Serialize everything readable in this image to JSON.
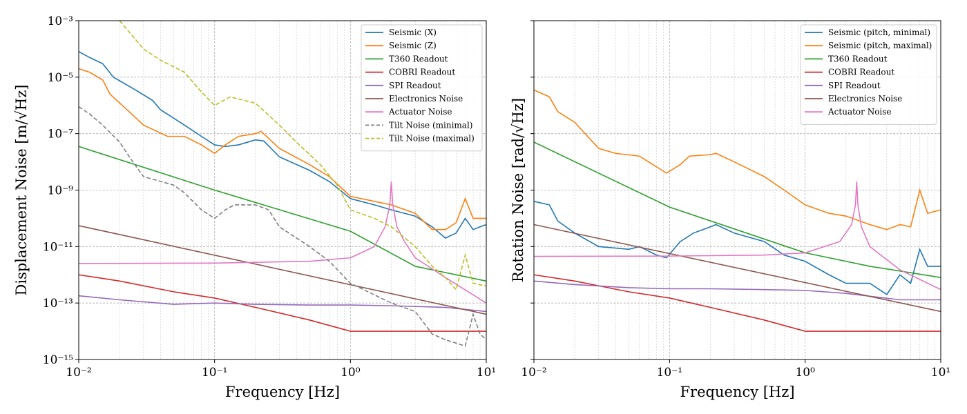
{
  "chart_data": [
    {
      "type": "line",
      "xscale": "log",
      "yscale": "log",
      "xlim": [
        0.01,
        10
      ],
      "ylim": [
        1e-15,
        0.001
      ],
      "xlabel": "Frequency [Hz]",
      "ylabel": "Displacement Noise [m/√Hz]",
      "grid": true,
      "legend_position": "top-right",
      "x_ticks": [
        "10⁻²",
        "10⁻¹",
        "10⁰",
        "10¹"
      ],
      "y_ticks": [
        "10⁻¹⁵",
        "10⁻¹³",
        "10⁻¹¹",
        "10⁻⁹",
        "10⁻⁷",
        "10⁻⁵",
        "10⁻³"
      ],
      "series": [
        {
          "name": "Seismic (X)",
          "color": "#1f77b4",
          "dash": "solid",
          "points": [
            [
              0.01,
              8e-05
            ],
            [
              0.012,
              5e-05
            ],
            [
              0.015,
              3e-05
            ],
            [
              0.018,
              1e-05
            ],
            [
              0.025,
              4e-06
            ],
            [
              0.035,
              1.5e-06
            ],
            [
              0.04,
              7e-07
            ],
            [
              0.06,
              2e-07
            ],
            [
              0.08,
              8e-08
            ],
            [
              0.1,
              4e-08
            ],
            [
              0.12,
              3.5e-08
            ],
            [
              0.15,
              4e-08
            ],
            [
              0.2,
              6e-08
            ],
            [
              0.23,
              5.5e-08
            ],
            [
              0.3,
              1.5e-08
            ],
            [
              0.5,
              5e-09
            ],
            [
              0.7,
              2e-09
            ],
            [
              1,
              5e-10
            ],
            [
              1.5,
              3e-10
            ],
            [
              2,
              2e-10
            ],
            [
              3,
              1.2e-10
            ],
            [
              4,
              5e-11
            ],
            [
              5,
              2e-11
            ],
            [
              6,
              3e-11
            ],
            [
              7,
              1e-10
            ],
            [
              8,
              4e-11
            ],
            [
              9,
              5e-11
            ],
            [
              10,
              6e-11
            ]
          ]
        },
        {
          "name": "Seismic (Z)",
          "color": "#ff7f0e",
          "dash": "solid",
          "points": [
            [
              0.01,
              2e-05
            ],
            [
              0.012,
              1.5e-05
            ],
            [
              0.015,
              8e-06
            ],
            [
              0.017,
              2.5e-06
            ],
            [
              0.022,
              8e-07
            ],
            [
              0.03,
              2e-07
            ],
            [
              0.045,
              8e-08
            ],
            [
              0.06,
              8e-08
            ],
            [
              0.08,
              4e-08
            ],
            [
              0.1,
              2e-08
            ],
            [
              0.12,
              4e-08
            ],
            [
              0.15,
              8e-08
            ],
            [
              0.2,
              1e-07
            ],
            [
              0.22,
              1.2e-07
            ],
            [
              0.3,
              3e-08
            ],
            [
              0.5,
              8e-09
            ],
            [
              0.7,
              3e-09
            ],
            [
              1,
              6e-10
            ],
            [
              1.5,
              4e-10
            ],
            [
              2,
              3e-10
            ],
            [
              3,
              1.5e-10
            ],
            [
              4,
              4e-11
            ],
            [
              5,
              4e-11
            ],
            [
              6,
              7e-11
            ],
            [
              7,
              5e-10
            ],
            [
              8,
              1e-10
            ],
            [
              10,
              1e-10
            ]
          ]
        },
        {
          "name": "T360 Readout",
          "color": "#2ca02c",
          "dash": "solid",
          "points": [
            [
              0.01,
              3.5e-08
            ],
            [
              0.1,
              1e-09
            ],
            [
              1,
              3.5e-11
            ],
            [
              3,
              2e-12
            ],
            [
              10,
              6e-13
            ]
          ]
        },
        {
          "name": "COBRI Readout",
          "color": "#d62728",
          "dash": "solid",
          "points": [
            [
              0.01,
              1e-12
            ],
            [
              0.02,
              6e-13
            ],
            [
              0.05,
              2.5e-13
            ],
            [
              0.1,
              1.5e-13
            ],
            [
              0.2,
              7e-14
            ],
            [
              0.5,
              2.5e-14
            ],
            [
              1,
              1e-14
            ],
            [
              10,
              1e-14
            ]
          ]
        },
        {
          "name": "SPI Readout",
          "color": "#9467bd",
          "dash": "solid",
          "points": [
            [
              0.01,
              1.8e-13
            ],
            [
              0.02,
              1.3e-13
            ],
            [
              0.05,
              9e-14
            ],
            [
              0.1,
              1e-13
            ],
            [
              0.2,
              9e-14
            ],
            [
              0.5,
              8.5e-14
            ],
            [
              1,
              8.5e-14
            ],
            [
              2,
              8e-14
            ],
            [
              5,
              7e-14
            ],
            [
              10,
              5e-14
            ]
          ]
        },
        {
          "name": "Electronics Noise",
          "color": "#8c564b",
          "dash": "solid",
          "points": [
            [
              0.01,
              5.5e-11
            ],
            [
              10,
              4e-14
            ]
          ]
        },
        {
          "name": "Actuator Noise",
          "color": "#e377c2",
          "dash": "solid",
          "points": [
            [
              0.01,
              2.5e-12
            ],
            [
              0.1,
              2.6e-12
            ],
            [
              0.5,
              3e-12
            ],
            [
              1,
              4e-12
            ],
            [
              1.5,
              1e-11
            ],
            [
              1.8,
              5e-11
            ],
            [
              1.95,
              3e-10
            ],
            [
              2,
              2e-09
            ],
            [
              2.05,
              3e-10
            ],
            [
              2.2,
              5e-11
            ],
            [
              2.5,
              1.5e-11
            ],
            [
              3,
              4e-12
            ],
            [
              5,
              8e-13
            ],
            [
              10,
              1e-13
            ]
          ]
        },
        {
          "name": "Tilt Noise (minimal)",
          "color": "#7f7f7f",
          "dash": "dashed",
          "points": [
            [
              0.01,
              9e-07
            ],
            [
              0.012,
              5e-07
            ],
            [
              0.015,
              2e-07
            ],
            [
              0.02,
              5e-08
            ],
            [
              0.025,
              1e-08
            ],
            [
              0.03,
              3e-09
            ],
            [
              0.05,
              1.5e-09
            ],
            [
              0.06,
              8e-10
            ],
            [
              0.08,
              2e-10
            ],
            [
              0.1,
              1e-10
            ],
            [
              0.12,
              2e-10
            ],
            [
              0.14,
              3e-10
            ],
            [
              0.2,
              3e-10
            ],
            [
              0.25,
              2e-10
            ],
            [
              0.3,
              5e-11
            ],
            [
              0.5,
              1e-11
            ],
            [
              0.7,
              3e-12
            ],
            [
              1,
              5e-13
            ],
            [
              2,
              1e-13
            ],
            [
              3,
              5e-14
            ],
            [
              4,
              8e-15
            ],
            [
              5,
              5e-15
            ],
            [
              7,
              3e-15
            ],
            [
              8,
              4e-14
            ],
            [
              9,
              8e-15
            ],
            [
              10,
              5e-15
            ]
          ]
        },
        {
          "name": "Tilt Noise (maximal)",
          "color": "#bcbd22",
          "dash": "dashed",
          "points": [
            [
              0.02,
              0.001
            ],
            [
              0.03,
              0.0001
            ],
            [
              0.04,
              4e-05
            ],
            [
              0.06,
              1.5e-05
            ],
            [
              0.08,
              3e-06
            ],
            [
              0.1,
              1e-06
            ],
            [
              0.13,
              2e-06
            ],
            [
              0.2,
              1.2e-06
            ],
            [
              0.3,
              2e-07
            ],
            [
              0.4,
              5e-08
            ],
            [
              0.6,
              8e-09
            ],
            [
              0.8,
              1.5e-09
            ],
            [
              1,
              2e-10
            ],
            [
              1.5,
              1e-10
            ],
            [
              2,
              5e-11
            ],
            [
              3,
              1e-11
            ],
            [
              4,
              2e-12
            ],
            [
              5,
              8e-13
            ],
            [
              6,
              3e-13
            ],
            [
              7,
              5e-12
            ],
            [
              8,
              5e-13
            ],
            [
              10,
              4e-13
            ]
          ]
        }
      ]
    },
    {
      "type": "line",
      "xscale": "log",
      "yscale": "log",
      "xlim": [
        0.01,
        10
      ],
      "ylim": [
        1e-15,
        0.001
      ],
      "xlabel": "Frequency [Hz]",
      "ylabel": "Rotation Noise [rad/√Hz]",
      "grid": true,
      "legend_position": "top-right",
      "x_ticks": [
        "10⁻²",
        "10⁻¹",
        "10⁰",
        "10¹"
      ],
      "series": [
        {
          "name": "Seismic (pitch, minimal)",
          "color": "#1f77b4",
          "dash": "solid",
          "points": [
            [
              0.01,
              4e-10
            ],
            [
              0.013,
              3e-10
            ],
            [
              0.015,
              8e-11
            ],
            [
              0.02,
              3e-11
            ],
            [
              0.03,
              1e-11
            ],
            [
              0.05,
              8e-12
            ],
            [
              0.06,
              1e-11
            ],
            [
              0.08,
              5e-12
            ],
            [
              0.095,
              4e-12
            ],
            [
              0.12,
              1.5e-11
            ],
            [
              0.15,
              3e-11
            ],
            [
              0.2,
              5e-11
            ],
            [
              0.22,
              6e-11
            ],
            [
              0.3,
              3e-11
            ],
            [
              0.5,
              1.5e-11
            ],
            [
              0.7,
              5e-12
            ],
            [
              1,
              3e-12
            ],
            [
              1.5,
              1e-12
            ],
            [
              2,
              5e-13
            ],
            [
              3,
              5e-13
            ],
            [
              4,
              2e-13
            ],
            [
              5,
              1e-12
            ],
            [
              6,
              5e-13
            ],
            [
              7,
              8e-12
            ],
            [
              8,
              2e-12
            ],
            [
              10,
              2e-12
            ]
          ]
        },
        {
          "name": "Seismic (pitch, maximal)",
          "color": "#ff7f0e",
          "dash": "solid",
          "points": [
            [
              0.01,
              3.5e-06
            ],
            [
              0.013,
              2e-06
            ],
            [
              0.015,
              6e-07
            ],
            [
              0.02,
              2.5e-07
            ],
            [
              0.03,
              3e-08
            ],
            [
              0.04,
              2e-08
            ],
            [
              0.06,
              1.6e-08
            ],
            [
              0.07,
              1e-08
            ],
            [
              0.095,
              4e-09
            ],
            [
              0.12,
              8e-09
            ],
            [
              0.14,
              1.6e-08
            ],
            [
              0.2,
              1.8e-08
            ],
            [
              0.22,
              2e-08
            ],
            [
              0.3,
              1e-08
            ],
            [
              0.5,
              3e-09
            ],
            [
              0.7,
              1e-09
            ],
            [
              1,
              3e-10
            ],
            [
              1.5,
              1.5e-10
            ],
            [
              2,
              1.2e-10
            ],
            [
              3,
              6e-11
            ],
            [
              4,
              4e-11
            ],
            [
              5,
              6e-11
            ],
            [
              6,
              5e-11
            ],
            [
              7,
              1e-09
            ],
            [
              8,
              1.5e-10
            ],
            [
              10,
              2e-10
            ]
          ]
        },
        {
          "name": "T360 Readout",
          "color": "#2ca02c",
          "dash": "solid",
          "points": [
            [
              0.01,
              5e-08
            ],
            [
              0.1,
              2.5e-10
            ],
            [
              1,
              6e-12
            ],
            [
              3,
              2e-12
            ],
            [
              10,
              8e-13
            ]
          ]
        },
        {
          "name": "COBRI Readout",
          "color": "#d62728",
          "dash": "solid",
          "points": [
            [
              0.01,
              1e-12
            ],
            [
              0.02,
              6e-13
            ],
            [
              0.05,
              2.5e-13
            ],
            [
              0.1,
              1.5e-13
            ],
            [
              0.2,
              7e-14
            ],
            [
              0.5,
              2.5e-14
            ],
            [
              1,
              1e-14
            ],
            [
              10,
              1e-14
            ]
          ]
        },
        {
          "name": "SPI Readout",
          "color": "#9467bd",
          "dash": "solid",
          "points": [
            [
              0.01,
              6e-13
            ],
            [
              0.02,
              4.5e-13
            ],
            [
              0.05,
              3.5e-13
            ],
            [
              0.1,
              3.2e-13
            ],
            [
              0.2,
              3.2e-13
            ],
            [
              0.5,
              3e-13
            ],
            [
              1,
              2.8e-13
            ],
            [
              2,
              2.2e-13
            ],
            [
              5,
              1.3e-13
            ],
            [
              10,
              1.3e-13
            ]
          ]
        },
        {
          "name": "Electronics Noise",
          "color": "#8c564b",
          "dash": "solid",
          "points": [
            [
              0.01,
              6e-11
            ],
            [
              10,
              5e-14
            ]
          ]
        },
        {
          "name": "Actuator Noise",
          "color": "#e377c2",
          "dash": "solid",
          "points": [
            [
              0.01,
              4.5e-12
            ],
            [
              0.1,
              4.6e-12
            ],
            [
              0.5,
              5e-12
            ],
            [
              1,
              6e-12
            ],
            [
              1.8,
              1.5e-11
            ],
            [
              2.2,
              6e-11
            ],
            [
              2.35,
              3e-10
            ],
            [
              2.4,
              2e-09
            ],
            [
              2.45,
              3e-10
            ],
            [
              2.6,
              5e-11
            ],
            [
              3,
              1e-11
            ],
            [
              5,
              1.5e-12
            ],
            [
              10,
              3e-13
            ]
          ]
        }
      ]
    }
  ]
}
